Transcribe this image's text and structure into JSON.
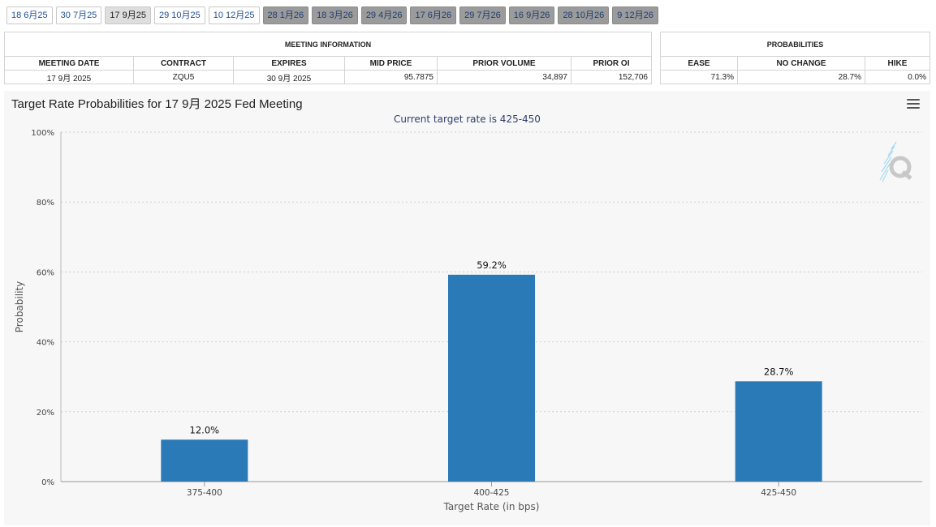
{
  "tabs": [
    {
      "label": "18 6月25",
      "state": "past"
    },
    {
      "label": "30 7月25",
      "state": "past"
    },
    {
      "label": "17 9月25",
      "state": "active"
    },
    {
      "label": "29 10月25",
      "state": "past"
    },
    {
      "label": "10 12月25",
      "state": "past"
    },
    {
      "label": "28 1月26",
      "state": "future"
    },
    {
      "label": "18 3月26",
      "state": "future"
    },
    {
      "label": "29 4月26",
      "state": "future"
    },
    {
      "label": "17 6月26",
      "state": "future"
    },
    {
      "label": "29 7月26",
      "state": "future"
    },
    {
      "label": "16 9月26",
      "state": "future"
    },
    {
      "label": "28 10月26",
      "state": "future"
    },
    {
      "label": "9 12月26",
      "state": "future"
    }
  ],
  "meeting_info": {
    "title": "MEETING INFORMATION",
    "headers": {
      "meeting_date": "MEETING DATE",
      "contract": "CONTRACT",
      "expires": "EXPIRES",
      "mid_price": "MID PRICE",
      "prior_volume": "PRIOR VOLUME",
      "prior_oi": "PRIOR OI"
    },
    "values": {
      "meeting_date": "17 9月 2025",
      "contract": "ZQU5",
      "expires": "30 9月 2025",
      "mid_price": "95.7875",
      "prior_volume": "34,897",
      "prior_oi": "152,706"
    }
  },
  "probabilities": {
    "title": "PROBABILITIES",
    "headers": {
      "ease": "EASE",
      "no_change": "NO CHANGE",
      "hike": "HIKE"
    },
    "values": {
      "ease": "71.3%",
      "no_change": "28.7%",
      "hike": "0.0%"
    }
  },
  "chart": {
    "title": "Target Rate Probabilities for 17 9月 2025 Fed Meeting",
    "subtitle": "Current target rate is 425-450",
    "menu_icon": "hamburger-menu-icon",
    "logo_icon": "quikstrike-q-logo-icon"
  },
  "chart_data": {
    "type": "bar",
    "categories": [
      "375-400",
      "400-425",
      "425-450"
    ],
    "values": [
      12.0,
      59.2,
      28.7
    ],
    "data_labels": [
      "12.0%",
      "59.2%",
      "28.7%"
    ],
    "xlabel": "Target Rate (in bps)",
    "ylabel": "Probability",
    "ylim": [
      0,
      100
    ],
    "yticks": [
      "0%",
      "20%",
      "40%",
      "60%",
      "80%",
      "100%"
    ],
    "grid": "horizontal dotted",
    "bar_color": "#2a7ab8"
  }
}
